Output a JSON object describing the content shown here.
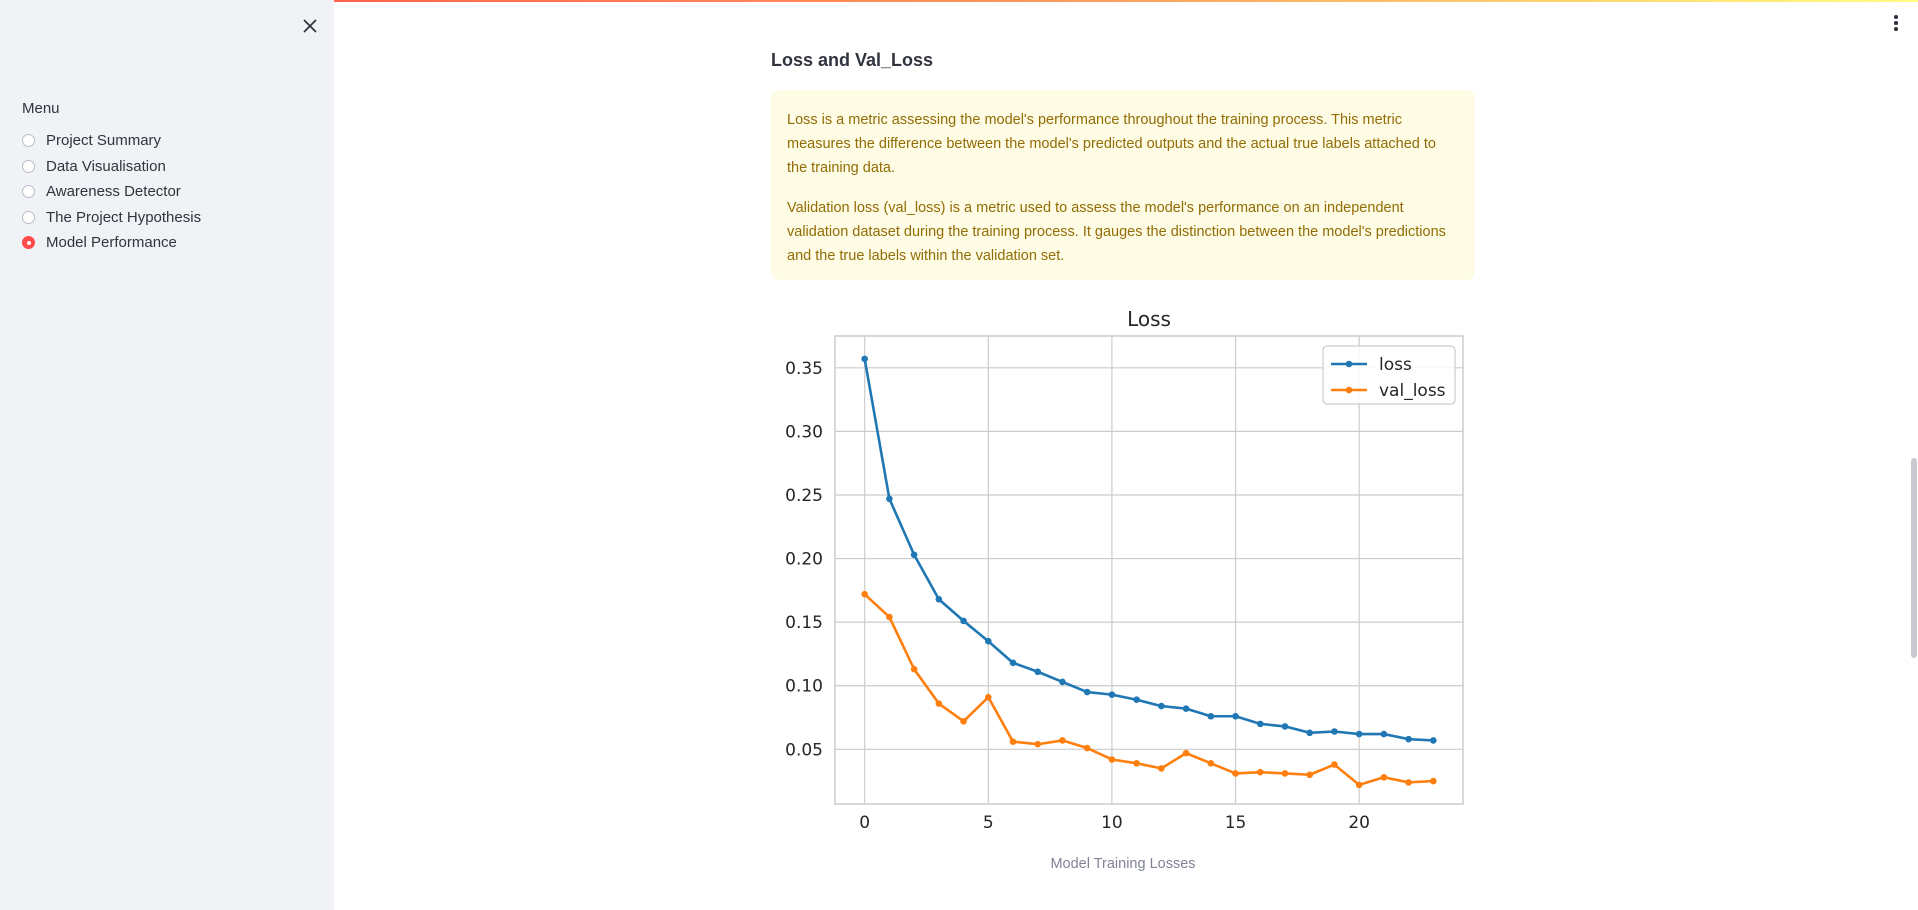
{
  "sidebar": {
    "close_icon": "close-icon",
    "menu_label": "Menu",
    "items": [
      {
        "label": "Project Summary",
        "selected": false
      },
      {
        "label": "Data Visualisation",
        "selected": false
      },
      {
        "label": "Awareness Detector",
        "selected": false
      },
      {
        "label": "The Project Hypothesis",
        "selected": false
      },
      {
        "label": "Model Performance",
        "selected": true
      }
    ]
  },
  "main": {
    "heading": "Loss and Val_Loss",
    "info_paragraphs": [
      "Loss is a metric assessing the model's performance throughout the training process. This metric measures the difference between the model's predicted outputs and the actual true labels attached to the training data.",
      "Validation loss (val_loss) is a metric used to assess the model's performance on an independent validation dataset during the training process. It gauges the distinction between the model's predictions and the true labels within the validation set."
    ],
    "caption": "Model Training Losses",
    "menu_icon": "kebab-menu-icon"
  },
  "colors": {
    "accent": "#ff4b4b",
    "info_bg": "#fffce6",
    "info_text": "#926c05",
    "loss": "#1f77b4",
    "val_loss": "#ff7f0e"
  },
  "chart_data": {
    "type": "line",
    "title": "Loss",
    "xlabel": "",
    "ylabel": "",
    "x": [
      0,
      1,
      2,
      3,
      4,
      5,
      6,
      7,
      8,
      9,
      10,
      11,
      12,
      13,
      14,
      15,
      16,
      17,
      18,
      19,
      20,
      21,
      22,
      23
    ],
    "xticks": [
      0,
      5,
      10,
      15,
      20
    ],
    "yticks": [
      0.05,
      0.1,
      0.15,
      0.2,
      0.25,
      0.3,
      0.35
    ],
    "xlim": [
      -1.2,
      24.2
    ],
    "ylim": [
      0.007,
      0.375
    ],
    "grid": true,
    "legend_position": "top-right",
    "series": [
      {
        "name": "loss",
        "color": "#1f77b4",
        "values": [
          0.357,
          0.247,
          0.203,
          0.168,
          0.151,
          0.135,
          0.118,
          0.111,
          0.103,
          0.095,
          0.093,
          0.089,
          0.084,
          0.082,
          0.076,
          0.076,
          0.07,
          0.068,
          0.063,
          0.064,
          0.062,
          0.062,
          0.058,
          0.057
        ]
      },
      {
        "name": "val_loss",
        "color": "#ff7f0e",
        "values": [
          0.172,
          0.154,
          0.113,
          0.086,
          0.072,
          0.091,
          0.056,
          0.054,
          0.057,
          0.051,
          0.042,
          0.039,
          0.035,
          0.047,
          0.039,
          0.031,
          0.032,
          0.031,
          0.03,
          0.038,
          0.022,
          0.028,
          0.024,
          0.025
        ]
      }
    ]
  }
}
